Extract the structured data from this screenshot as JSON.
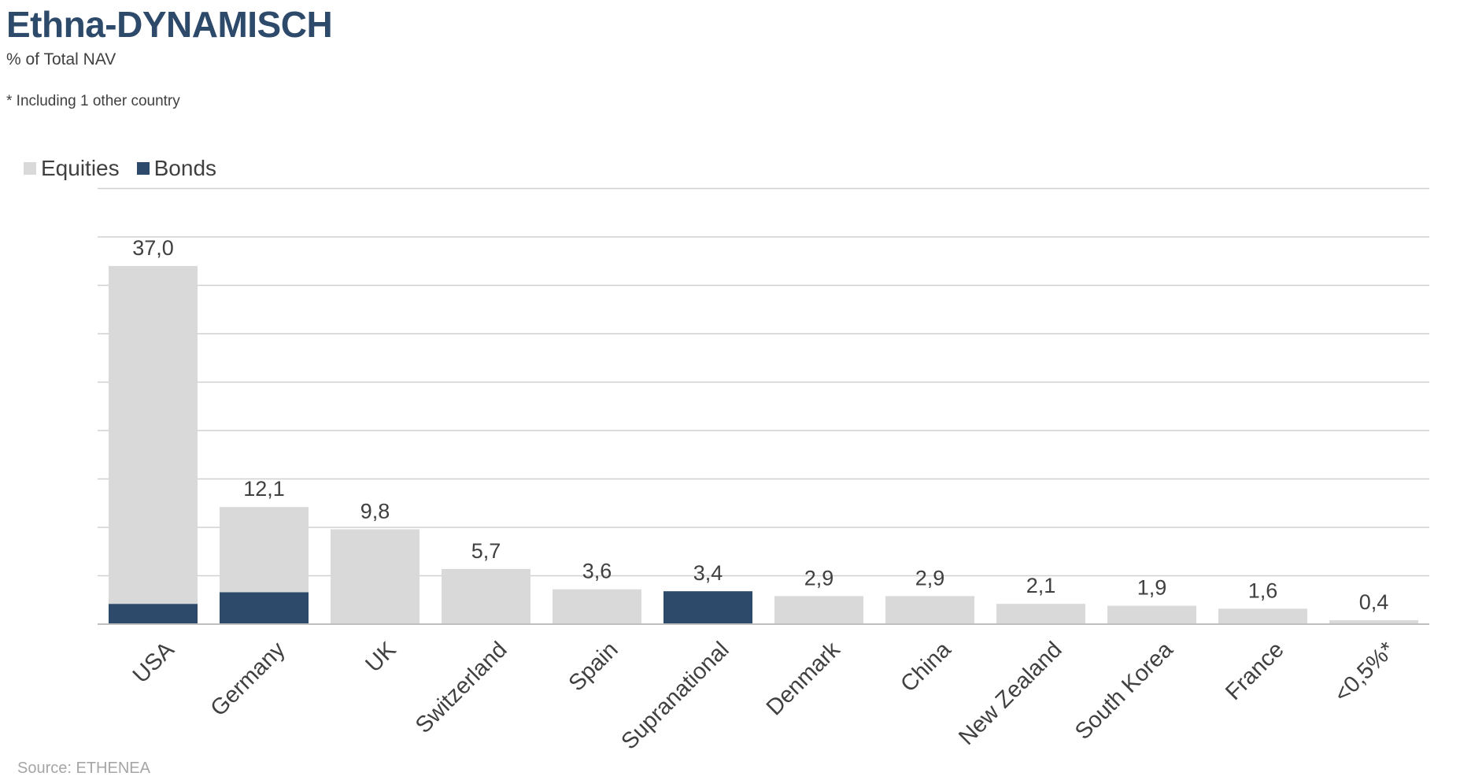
{
  "header": {
    "title": "Ethna-DYNAMISCH",
    "subtitle": "% of Total NAV",
    "note": "* Including 1 other country"
  },
  "footer": {
    "source": "Source: ETHENEA"
  },
  "colors": {
    "equities": "#d9d9d9",
    "bonds": "#2e4a6b",
    "grid": "#d0d0d0",
    "text": "#404040"
  },
  "chart_data": {
    "type": "bar",
    "stacked": true,
    "categories": [
      "USA",
      "Germany",
      "UK",
      "Switzerland",
      "Spain",
      "Supranational",
      "Denmark",
      "China",
      "New Zealand",
      "South Korea",
      "France",
      "<0,5%*"
    ],
    "series": [
      {
        "name": "Equities",
        "values": [
          34.9,
          8.8,
          9.8,
          5.7,
          3.6,
          0,
          2.9,
          2.9,
          2.1,
          1.9,
          1.6,
          0.4
        ]
      },
      {
        "name": "Bonds",
        "values": [
          2.1,
          3.3,
          0,
          0,
          0,
          3.4,
          0,
          0,
          0,
          0,
          0,
          0
        ]
      }
    ],
    "totals": [
      37.0,
      12.1,
      9.8,
      5.7,
      3.6,
      3.4,
      2.9,
      2.9,
      2.1,
      1.9,
      1.6,
      0.4
    ],
    "total_labels": [
      "37,0",
      "12,1",
      "9,8",
      "5,7",
      "3,6",
      "3,4",
      "2,9",
      "2,9",
      "2,1",
      "1,9",
      "1,6",
      "0,4"
    ],
    "ylim": [
      0,
      45
    ],
    "grid": true,
    "legend": "top-left"
  }
}
